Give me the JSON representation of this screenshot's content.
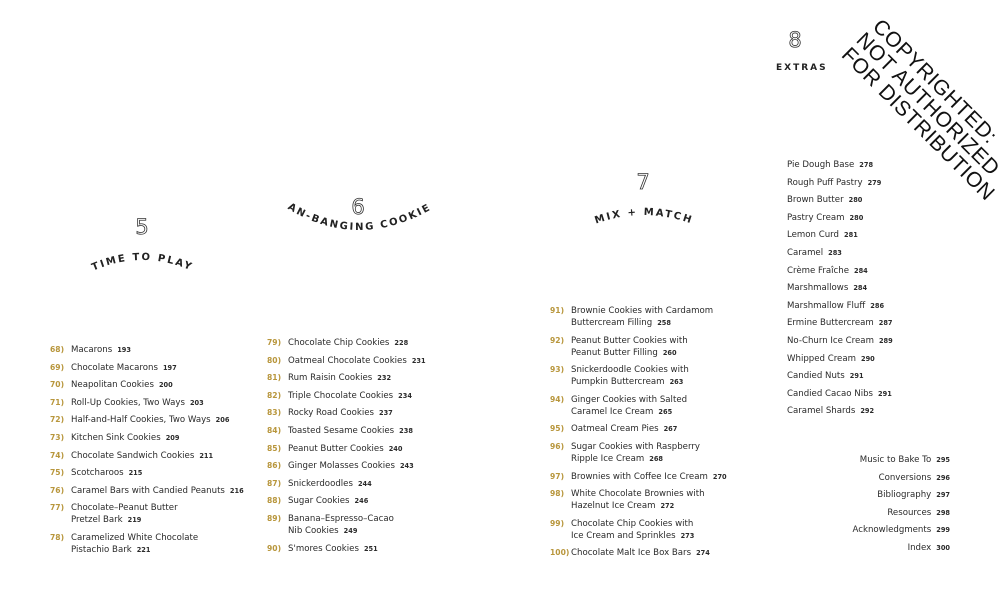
{
  "accent_color": "#b8963c",
  "chapters": [
    {
      "number": "5",
      "title": "TIME TO PLAY",
      "entries": [
        {
          "num": "68)",
          "title": "Macarons",
          "page": "193"
        },
        {
          "num": "69)",
          "title": "Chocolate Macarons",
          "page": "197"
        },
        {
          "num": "70)",
          "title": "Neapolitan Cookies",
          "page": "200"
        },
        {
          "num": "71)",
          "title": "Roll-Up Cookies, Two Ways",
          "page": "203"
        },
        {
          "num": "72)",
          "title": "Half-and-Half Cookies, Two Ways",
          "page": "206"
        },
        {
          "num": "73)",
          "title": "Kitchen Sink Cookies",
          "page": "209"
        },
        {
          "num": "74)",
          "title": "Chocolate Sandwich Cookies",
          "page": "211"
        },
        {
          "num": "75)",
          "title": "Scotcharoos",
          "page": "215"
        },
        {
          "num": "76)",
          "title": "Caramel Bars with Candied Peanuts",
          "page": "216"
        },
        {
          "num": "77)",
          "title": "Chocolate–Peanut Butter\nPretzel Bark",
          "page": "219"
        },
        {
          "num": "78)",
          "title": "Caramelized White Chocolate\nPistachio Bark",
          "page": "221"
        }
      ]
    },
    {
      "number": "6",
      "title": "PAN-BANGING COOKIES",
      "entries": [
        {
          "num": "79)",
          "title": "Chocolate Chip Cookies",
          "page": "228"
        },
        {
          "num": "80)",
          "title": "Oatmeal Chocolate Cookies",
          "page": "231"
        },
        {
          "num": "81)",
          "title": "Rum Raisin Cookies",
          "page": "232"
        },
        {
          "num": "82)",
          "title": "Triple Chocolate Cookies",
          "page": "234"
        },
        {
          "num": "83)",
          "title": "Rocky Road Cookies",
          "page": "237"
        },
        {
          "num": "84)",
          "title": "Toasted Sesame Cookies",
          "page": "238"
        },
        {
          "num": "85)",
          "title": "Peanut Butter Cookies",
          "page": "240"
        },
        {
          "num": "86)",
          "title": "Ginger Molasses Cookies",
          "page": "243"
        },
        {
          "num": "87)",
          "title": "Snickerdoodles",
          "page": "244"
        },
        {
          "num": "88)",
          "title": "Sugar Cookies",
          "page": "246"
        },
        {
          "num": "89)",
          "title": "Banana–Espresso–Cacao\nNib Cookies",
          "page": "249"
        },
        {
          "num": "90)",
          "title": "S'mores Cookies",
          "page": "251"
        }
      ]
    },
    {
      "number": "7",
      "title": "MIX + MATCH",
      "entries": [
        {
          "num": "91)",
          "title": "Brownie Cookies with Cardamom\nButtercream Filling",
          "page": "258"
        },
        {
          "num": "92)",
          "title": "Peanut Butter Cookies with\nPeanut Butter Filling",
          "page": "260"
        },
        {
          "num": "93)",
          "title": "Snickerdoodle Cookies with\nPumpkin Buttercream",
          "page": "263"
        },
        {
          "num": "94)",
          "title": "Ginger Cookies with Salted\nCaramel Ice Cream",
          "page": "265"
        },
        {
          "num": "95)",
          "title": "Oatmeal Cream Pies",
          "page": "267"
        },
        {
          "num": "96)",
          "title": "Sugar Cookies with Raspberry\nRipple Ice Cream",
          "page": "268"
        },
        {
          "num": "97)",
          "title": "Brownies with Coffee Ice Cream",
          "page": "270"
        },
        {
          "num": "98)",
          "title": "White Chocolate Brownies with\nHazelnut Ice Cream",
          "page": "272"
        },
        {
          "num": "99)",
          "title": "Chocolate Chip Cookies with\nIce Cream and Sprinkles",
          "page": "273"
        },
        {
          "num": "100)",
          "title": "Chocolate Malt Ice Box Bars",
          "page": "274"
        }
      ]
    },
    {
      "number": "8",
      "title": "EXTRAS",
      "entries": [
        {
          "title": "Pie Dough Base",
          "page": "278"
        },
        {
          "title": "Rough Puff Pastry",
          "page": "279"
        },
        {
          "title": "Brown Butter",
          "page": "280"
        },
        {
          "title": "Pastry Cream",
          "page": "280"
        },
        {
          "title": "Lemon Curd",
          "page": "281"
        },
        {
          "title": "Caramel",
          "page": "283"
        },
        {
          "title": "Crème Fraîche",
          "page": "284"
        },
        {
          "title": "Marshmallows",
          "page": "284"
        },
        {
          "title": "Marshmallow Fluff",
          "page": "286"
        },
        {
          "title": "Ermine Buttercream",
          "page": "287"
        },
        {
          "title": "No-Churn Ice Cream",
          "page": "289"
        },
        {
          "title": "Whipped Cream",
          "page": "290"
        },
        {
          "title": "Candied Nuts",
          "page": "291"
        },
        {
          "title": "Candied Cacao Nibs",
          "page": "291"
        },
        {
          "title": "Caramel Shards",
          "page": "292"
        }
      ]
    }
  ],
  "back_matter": [
    {
      "title": "Music to Bake To",
      "page": "295"
    },
    {
      "title": "Conversions",
      "page": "296"
    },
    {
      "title": "Bibliography",
      "page": "297"
    },
    {
      "title": "Resources",
      "page": "298"
    },
    {
      "title": "Acknowledgments",
      "page": "299"
    },
    {
      "title": "Index",
      "page": "300"
    }
  ],
  "watermark": [
    "COPYRIGHTED:",
    "NOT AUTHORIZED",
    "FOR DISTRIBUTION"
  ]
}
